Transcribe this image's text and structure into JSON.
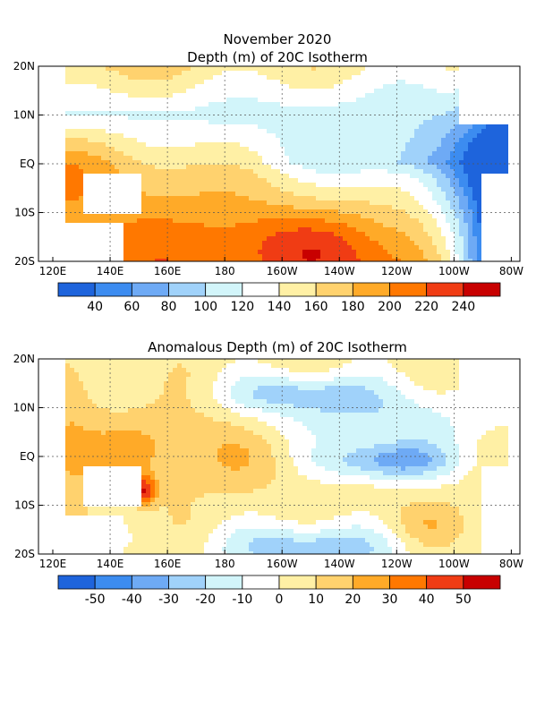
{
  "chart_data": [
    {
      "type": "heatmap",
      "title": "November 2020",
      "subtitle": "Depth (m) of 20C Isotherm",
      "x_ticks": [
        "120E",
        "140E",
        "160E",
        "180",
        "160W",
        "140W",
        "120W",
        "100W",
        "80W"
      ],
      "y_ticks": [
        "20N",
        "10N",
        "EQ",
        "10S",
        "20S"
      ],
      "colorbar_labels": [
        "40",
        "60",
        "80",
        "100",
        "120",
        "140",
        "160",
        "180",
        "200",
        "220",
        "240"
      ],
      "colors": [
        "#1e64dc",
        "#3c8cf0",
        "#6eaaf5",
        "#a0d2fa",
        "#d2f5fa",
        "#ffffff",
        "#fff0a5",
        "#ffd26e",
        "#ffaa28",
        "#ff7800",
        "#f03c14",
        "#c80000"
      ],
      "grid": true,
      "features": {
        "north_band": 170,
        "north_ridge_10N": 120,
        "eq_west": 190,
        "eq_east": 40,
        "south_max": 240,
        "east_trough_min": 40
      }
    },
    {
      "type": "heatmap",
      "title": "Anomalous Depth (m) of 20C Isotherm",
      "x_ticks": [
        "120E",
        "140E",
        "160E",
        "180",
        "160W",
        "140W",
        "120W",
        "100W",
        "80W"
      ],
      "y_ticks": [
        "20N",
        "10N",
        "EQ",
        "10S",
        "20S"
      ],
      "colorbar_labels": [
        "-50",
        "-40",
        "-30",
        "-20",
        "-10",
        "0",
        "10",
        "20",
        "30",
        "40",
        "50"
      ],
      "colors": [
        "#1e64dc",
        "#3c8cf0",
        "#6eaaf5",
        "#a0d2fa",
        "#d2f5fa",
        "#ffffff",
        "#fff0a5",
        "#ffd26e",
        "#ffaa28",
        "#ff7800",
        "#f03c14",
        "#c80000"
      ],
      "grid": true,
      "features": {
        "west_positive": 20,
        "png_hotspot": 50,
        "east_eq_negative": -40,
        "north_central_negative": -25,
        "south_central_negative": -40
      }
    }
  ]
}
